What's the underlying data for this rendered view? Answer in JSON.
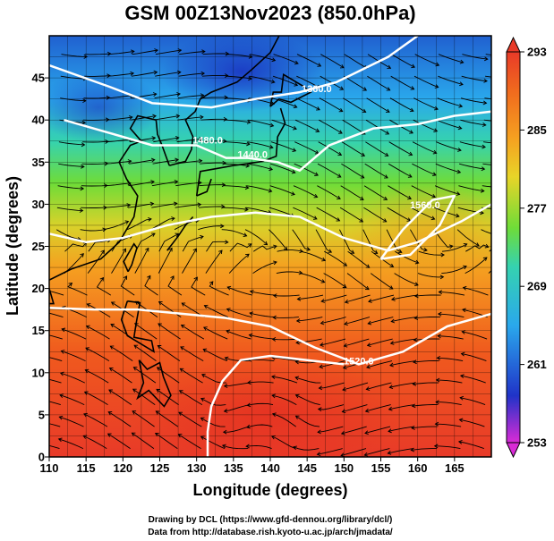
{
  "title": "GSM 00Z13Nov2023 (850.0hPa)",
  "x_axis": {
    "label": "Longitude (degrees)",
    "min": 110,
    "max": 170,
    "ticks": [
      "110",
      "115",
      "120",
      "125",
      "130",
      "135",
      "140",
      "145",
      "150",
      "155",
      "160",
      "165"
    ]
  },
  "y_axis": {
    "label": "Latitude (degrees)",
    "min": 0,
    "max": 50,
    "ticks": [
      "0",
      "5",
      "10",
      "15",
      "20",
      "25",
      "30",
      "35",
      "40",
      "45"
    ]
  },
  "colorbar": {
    "min": 253,
    "max": 293,
    "labels": [
      "293",
      "285",
      "277",
      "269",
      "261",
      "253"
    ],
    "colors": [
      "#d92bd6",
      "#2033c8",
      "#2aa8ec",
      "#35d2b0",
      "#6fdc38",
      "#e8d428",
      "#f5a020",
      "#f06a1e",
      "#e83a28"
    ]
  },
  "contours": [
    {
      "label": "1360.0",
      "lon": 146.3,
      "lat": 43.3
    },
    {
      "label": "1440.0",
      "lon": 137.6,
      "lat": 35.5
    },
    {
      "label": "1480.0",
      "lon": 131.5,
      "lat": 37.2
    },
    {
      "label": "1560.0",
      "lon": 161.0,
      "lat": 29.5
    },
    {
      "label": "1520.0",
      "lon": 152.0,
      "lat": 11.0
    }
  ],
  "credits": {
    "line1": "Drawing by DCL (https://www.gfd-dennou.org/library/dcl/)",
    "line2": "Data from http://database.rish.kyoto-u.ac.jp/arch/jmadata/"
  }
}
